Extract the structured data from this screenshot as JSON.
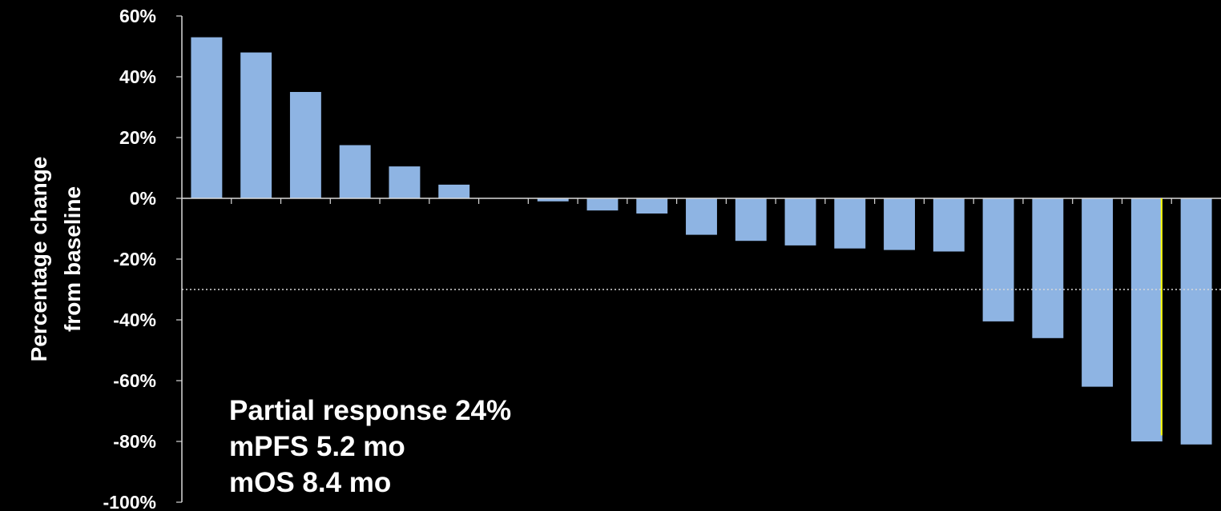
{
  "colors": {
    "background": "#000000",
    "bar_fill": "#8EB4E3",
    "axis": "#D9D9D9",
    "text": "#FFFFFF",
    "threshold_line": "#D9D9D9",
    "highlight_line": "#FFFF00"
  },
  "chart_data": {
    "type": "bar",
    "title": "",
    "xlabel": "",
    "ylabel_lines": [
      "Percentage change",
      "from baseline"
    ],
    "ylim": [
      -100,
      60
    ],
    "y_ticks": [
      60,
      40,
      20,
      0,
      -20,
      -40,
      -60,
      -80,
      -100
    ],
    "y_tick_labels": [
      "60%",
      "40%",
      "20%",
      "0%",
      "-20%",
      "-40%",
      "-60%",
      "-80%",
      "-100%"
    ],
    "values": [
      53,
      48,
      35,
      17.5,
      10.5,
      4.5,
      0,
      -1,
      -4,
      -5,
      -12,
      -14,
      -15.5,
      -16.5,
      -17,
      -17.5,
      -40.5,
      -46,
      -62,
      -80,
      -81
    ],
    "grid": false,
    "reference_line": {
      "y": -30,
      "style": "dotted"
    },
    "highlight_line": {
      "bar_index": 19,
      "from": 0,
      "to": -78
    },
    "annotations": [
      "Partial response 24%",
      "mPFS 5.2 mo",
      "mOS 8.4 mo"
    ]
  }
}
